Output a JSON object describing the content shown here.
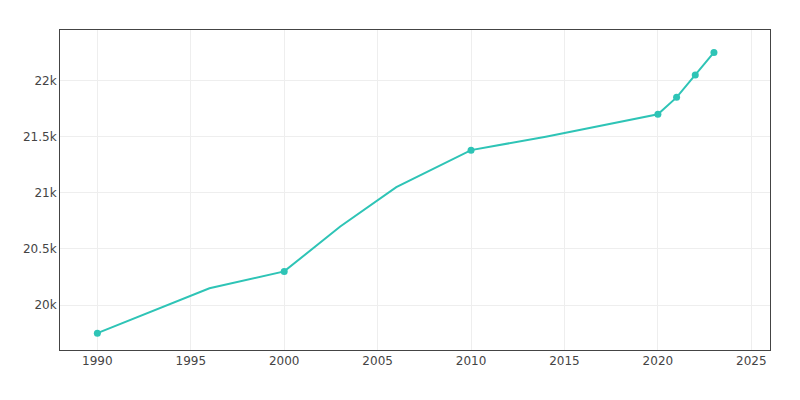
{
  "chart_data": {
    "type": "line",
    "x": [
      1990,
      1993,
      1996,
      2000,
      2003,
      2006,
      2010,
      2014,
      2020,
      2021,
      2022,
      2023
    ],
    "series": [
      {
        "color": "#2ec4b6",
        "line_style": "solid",
        "marker": "none",
        "values": [
          19750,
          19950,
          20150,
          20300,
          20700,
          21050,
          21380,
          21500,
          21700,
          21850,
          22050,
          22250
        ]
      },
      {
        "color": "#2ec4b6",
        "line_style": "none",
        "marker": "circle",
        "x": [
          1990,
          2000,
          2010,
          2020,
          2021,
          2022,
          2023
        ],
        "values": [
          19750,
          20300,
          21380,
          21700,
          21850,
          22050,
          22250
        ]
      }
    ],
    "xlim": [
      1988,
      2026
    ],
    "ylim": [
      19600,
      22450
    ],
    "xticks": [
      1990,
      1995,
      2000,
      2005,
      2010,
      2015,
      2020,
      2025
    ],
    "yticks": [
      {
        "value": 20000,
        "label": "20k"
      },
      {
        "value": 20500,
        "label": "20.5k"
      },
      {
        "value": 21000,
        "label": "21k"
      },
      {
        "value": 21500,
        "label": "21.5k"
      },
      {
        "value": 22000,
        "label": "22k"
      }
    ],
    "grid": true
  }
}
